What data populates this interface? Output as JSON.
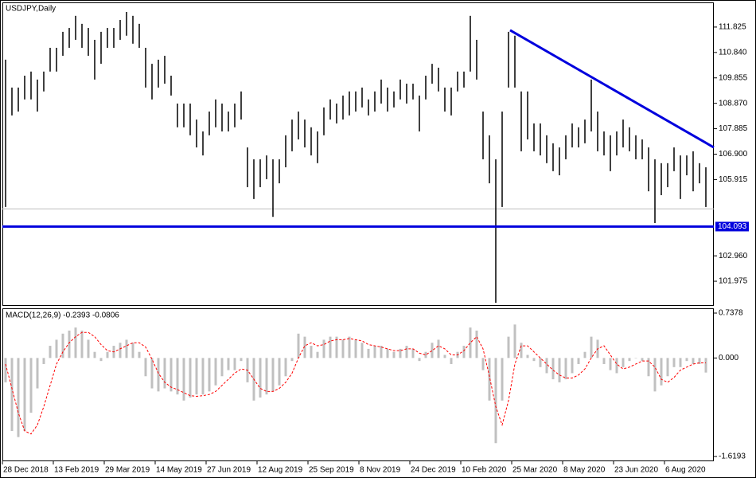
{
  "chart_data": [
    {
      "type": "range-bar",
      "title": "USDJPY,Daily",
      "ylim": [
        101.05,
        112.78
      ],
      "yticks": [
        111.825,
        {
          "value": 110.84,
          "label": "110.840"
        },
        109.855,
        {
          "value": 108.87,
          "label": "108.870"
        },
        107.885,
        {
          "value": 106.9,
          "label": "106.900"
        },
        105.915,
        {
          "value": 102.96,
          "label": "102.960"
        },
        101.975
      ],
      "color": "#000000",
      "highs": [
        110.56,
        109.48,
        109.48,
        109.94,
        110.1,
        109.79,
        110.1,
        111.02,
        111.02,
        111.64,
        111.79,
        112.26,
        111.95,
        111.79,
        111.33,
        111.64,
        111.79,
        111.79,
        112.1,
        112.41,
        112.26,
        111.95,
        111.02,
        110.4,
        110.56,
        110.71,
        109.94,
        108.86,
        108.86,
        108.86,
        108.24,
        107.78,
        108.55,
        109.02,
        108.86,
        108.55,
        108.86,
        109.33,
        107.16,
        106.7,
        106.7,
        106.85,
        106.7,
        106.7,
        107.63,
        108.24,
        108.55,
        108.24,
        107.94,
        107.78,
        108.71,
        109.02,
        108.86,
        109.17,
        109.33,
        109.33,
        109.48,
        109.02,
        109.33,
        109.79,
        109.48,
        109.33,
        109.79,
        109.63,
        109.63,
        109.17,
        109.94,
        110.4,
        110.25,
        109.48,
        109.48,
        110.1,
        110.1,
        112.26,
        111.33,
        108.55,
        107.63,
        106.7,
        108.55,
        111.64,
        111.49,
        109.33,
        109.33,
        108.09,
        108.09,
        107.63,
        107.32,
        107.16,
        107.63,
        108.09,
        107.94,
        108.24,
        109.79,
        108.55,
        107.78,
        107.63,
        107.78,
        108.24,
        107.94,
        107.63,
        107.47,
        107.16,
        106.7,
        106.55,
        106.55,
        107.16,
        106.85,
        106.85,
        107.01,
        106.55,
        106.39
      ],
      "lows": [
        104.85,
        108.4,
        108.55,
        109.02,
        109.02,
        108.55,
        109.33,
        110.1,
        110.1,
        110.71,
        111.02,
        111.33,
        111.02,
        110.71,
        109.79,
        110.4,
        111.02,
        111.02,
        111.33,
        111.49,
        111.18,
        111.02,
        109.48,
        109.02,
        109.48,
        109.63,
        109.17,
        107.94,
        107.94,
        107.63,
        107.16,
        106.85,
        107.63,
        107.94,
        107.78,
        107.78,
        107.94,
        108.24,
        105.62,
        105.16,
        105.62,
        105.93,
        104.47,
        105.77,
        106.39,
        107.01,
        107.47,
        107.16,
        106.85,
        106.55,
        107.63,
        108.24,
        108.09,
        108.24,
        108.4,
        108.55,
        108.71,
        108.4,
        108.55,
        108.86,
        108.55,
        108.71,
        109.02,
        108.86,
        109.02,
        107.78,
        109.02,
        109.63,
        109.33,
        108.55,
        108.4,
        109.33,
        109.48,
        110.1,
        109.79,
        106.7,
        105.77,
        101.14,
        104.85,
        109.48,
        109.48,
        107.01,
        107.47,
        107.01,
        106.85,
        106.55,
        106.24,
        106.08,
        106.7,
        107.16,
        107.16,
        107.32,
        107.78,
        107.01,
        106.85,
        106.24,
        106.85,
        107.16,
        107.01,
        106.7,
        106.7,
        105.46,
        104.23,
        105.31,
        105.62,
        106.24,
        105.16,
        106.08,
        105.46,
        105.77,
        104.85
      ],
      "last_price": 104.78,
      "support": 104.093,
      "support_color": "#0000dd",
      "trendline": {
        "x": [
          79.75,
          111.75
        ],
        "y": [
          111.7,
          107.16
        ],
        "color": "#0000dd"
      }
    },
    {
      "type": "macd",
      "title": "MACD(12,26,9) -0.2393 -0.0806",
      "ylim": [
        -1.6193,
        0.7378
      ],
      "yticks": [
        0.7378,
        {
          "value": 0,
          "label": "0.000"
        },
        -1.6193
      ],
      "xlim": [
        0,
        111.5
      ],
      "xticks": [
        {
          "value": 0,
          "label": "28 Dec 2018"
        },
        {
          "value": 8,
          "label": "13 Feb 2019"
        },
        {
          "value": 16,
          "label": "29 Mar 2019"
        },
        {
          "value": 24,
          "label": "14 May 2019"
        },
        {
          "value": 32,
          "label": "27 Jun 2019"
        },
        {
          "value": 40,
          "label": "12 Aug 2019"
        },
        {
          "value": 48,
          "label": "25 Sep 2019"
        },
        {
          "value": 56,
          "label": "8 Nov 2019"
        },
        {
          "value": 64,
          "label": "24 Dec 2019"
        },
        {
          "value": 72,
          "label": "10 Feb 2020"
        },
        {
          "value": 80,
          "label": "25 Mar 2020"
        },
        {
          "value": 88,
          "label": "8 May 2020"
        },
        {
          "value": 96,
          "label": "23 Jun 2020"
        },
        {
          "value": 104,
          "label": "6 Aug 2020"
        }
      ],
      "series": [
        {
          "name": "MACD",
          "color": "#c0c0c0",
          "values": [
            -0.4,
            -1.2,
            -1.3,
            -1.2,
            -0.9,
            -0.5,
            -0.1,
            0.2,
            0.3,
            0.4,
            0.45,
            0.5,
            0.45,
            0.3,
            0.1,
            -0.05,
            0.1,
            0.2,
            0.25,
            0.3,
            0.25,
            0.1,
            -0.3,
            -0.5,
            -0.55,
            -0.5,
            -0.55,
            -0.6,
            -0.7,
            -0.65,
            -0.6,
            -0.6,
            -0.55,
            -0.45,
            -0.3,
            -0.2,
            -0.2,
            -0.05,
            -0.4,
            -0.7,
            -0.65,
            -0.6,
            -0.55,
            -0.45,
            -0.3,
            -0.05,
            0.4,
            0.35,
            0.2,
            0.1,
            0.3,
            0.35,
            0.35,
            0.3,
            0.35,
            0.3,
            0.25,
            0.15,
            0.2,
            0.2,
            0.15,
            0.1,
            0.15,
            0.2,
            0.15,
            -0.05,
            0.1,
            0.25,
            0.3,
            0.05,
            -0.1,
            0.1,
            0.2,
            0.5,
            0.45,
            -0.2,
            -0.7,
            -1.4,
            -0.7,
            0.35,
            0.55,
            0.25,
            0.05,
            -0.05,
            -0.15,
            -0.25,
            -0.35,
            -0.4,
            -0.35,
            -0.25,
            -0.1,
            0.1,
            0.35,
            0.3,
            -0.1,
            -0.2,
            -0.25,
            -0.15,
            -0.05,
            0,
            -0.05,
            -0.3,
            -0.55,
            -0.45,
            -0.3,
            -0.15,
            -0.15,
            -0.05,
            -0.1,
            -0.1,
            -0.24
          ]
        },
        {
          "name": "Signal",
          "color": "#ff0000",
          "values": [
            -0.1,
            -0.5,
            -0.9,
            -1.2,
            -1.25,
            -1.1,
            -0.8,
            -0.45,
            -0.1,
            0.1,
            0.25,
            0.35,
            0.42,
            0.42,
            0.35,
            0.22,
            0.12,
            0.1,
            0.15,
            0.2,
            0.25,
            0.25,
            0.18,
            -0.02,
            -0.25,
            -0.4,
            -0.48,
            -0.52,
            -0.57,
            -0.62,
            -0.63,
            -0.62,
            -0.6,
            -0.55,
            -0.45,
            -0.35,
            -0.25,
            -0.18,
            -0.2,
            -0.35,
            -0.5,
            -0.55,
            -0.55,
            -0.5,
            -0.4,
            -0.25,
            0,
            0.2,
            0.25,
            0.2,
            0.22,
            0.28,
            0.3,
            0.3,
            0.32,
            0.3,
            0.28,
            0.22,
            0.2,
            0.18,
            0.15,
            0.12,
            0.12,
            0.15,
            0.15,
            0.08,
            0.05,
            0.12,
            0.2,
            0.15,
            0.05,
            0.05,
            0.12,
            0.25,
            0.35,
            0.15,
            -0.3,
            -0.8,
            -1.1,
            -0.7,
            -0.1,
            0.2,
            0.2,
            0.1,
            0,
            -0.1,
            -0.2,
            -0.28,
            -0.33,
            -0.33,
            -0.28,
            -0.18,
            0,
            0.15,
            0.2,
            0.05,
            -0.1,
            -0.18,
            -0.15,
            -0.1,
            -0.05,
            -0.05,
            -0.15,
            -0.35,
            -0.4,
            -0.32,
            -0.2,
            -0.15,
            -0.1,
            -0.08,
            -0.08
          ]
        }
      ]
    }
  ]
}
